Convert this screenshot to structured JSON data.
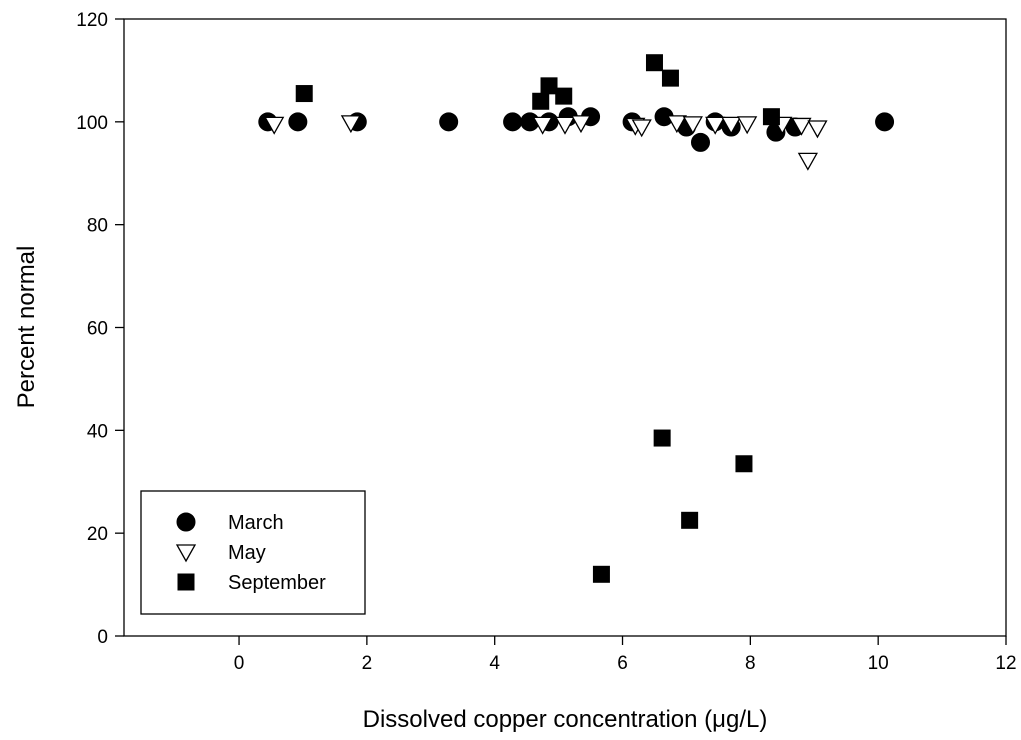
{
  "chart_data": {
    "type": "scatter",
    "xlabel": "Dissolved copper concentration (μg/L)",
    "ylabel": "Percent normal",
    "xlim": [
      -1.8,
      12
    ],
    "ylim": [
      0,
      120
    ],
    "x_ticks": [
      0,
      2,
      4,
      6,
      8,
      10,
      12
    ],
    "y_ticks": [
      0,
      20,
      40,
      60,
      80,
      100,
      120
    ],
    "grid": false,
    "legend_position": "bottom-left",
    "series": [
      {
        "name": "March",
        "marker": "filled-circle",
        "color": "#000000",
        "points": [
          [
            0.45,
            100
          ],
          [
            0.92,
            100
          ],
          [
            1.85,
            100
          ],
          [
            3.28,
            100
          ],
          [
            4.28,
            100
          ],
          [
            4.55,
            100
          ],
          [
            4.85,
            100
          ],
          [
            5.15,
            101
          ],
          [
            5.5,
            101
          ],
          [
            6.15,
            100
          ],
          [
            6.65,
            101
          ],
          [
            7.0,
            99
          ],
          [
            7.22,
            96
          ],
          [
            7.45,
            100
          ],
          [
            7.7,
            99
          ],
          [
            8.4,
            98
          ],
          [
            8.7,
            99
          ],
          [
            10.1,
            100
          ]
        ]
      },
      {
        "name": "May",
        "marker": "open-triangle-down",
        "color": "#000000",
        "points": [
          [
            0.55,
            99.5
          ],
          [
            1.75,
            99.8
          ],
          [
            4.75,
            99.5
          ],
          [
            5.1,
            99.5
          ],
          [
            5.35,
            99.8
          ],
          [
            6.2,
            99.3
          ],
          [
            6.3,
            99
          ],
          [
            6.85,
            99.8
          ],
          [
            7.1,
            99.6
          ],
          [
            7.45,
            99.5
          ],
          [
            7.7,
            99.5
          ],
          [
            7.95,
            99.6
          ],
          [
            8.5,
            99.5
          ],
          [
            8.8,
            99.3
          ],
          [
            9.05,
            98.8
          ],
          [
            8.9,
            92.5
          ]
        ]
      },
      {
        "name": "September",
        "marker": "filled-square",
        "color": "#000000",
        "points": [
          [
            1.02,
            105.5
          ],
          [
            4.72,
            104
          ],
          [
            4.85,
            107
          ],
          [
            5.08,
            105
          ],
          [
            6.5,
            111.5
          ],
          [
            6.75,
            108.5
          ],
          [
            8.33,
            101
          ],
          [
            6.62,
            38.5
          ],
          [
            7.9,
            33.5
          ],
          [
            7.05,
            22.5
          ],
          [
            5.67,
            12
          ]
        ]
      }
    ]
  }
}
